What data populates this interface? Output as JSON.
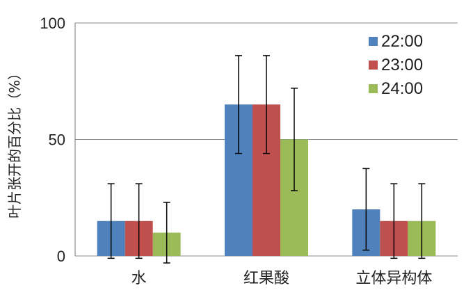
{
  "chart_data": {
    "type": "bar",
    "title": "",
    "xlabel": "",
    "ylabel": "叶片张开的百分比（%）",
    "ylim": [
      0,
      100
    ],
    "yticks": [
      0,
      50,
      100
    ],
    "grid": "horizontal",
    "legend_position": "top-right",
    "categories": [
      "水",
      "红果酸",
      "立体异构体"
    ],
    "series": [
      {
        "name": "22:00",
        "color": "#4f81bd",
        "values": [
          15,
          65,
          20
        ],
        "error": [
          16,
          21,
          17.5
        ]
      },
      {
        "name": "23:00",
        "color": "#c0504d",
        "values": [
          15,
          65,
          15
        ],
        "error": [
          16,
          21,
          16
        ]
      },
      {
        "name": "24:00",
        "color": "#9bbb59",
        "values": [
          10,
          50,
          15
        ],
        "error": [
          13,
          22,
          16
        ]
      }
    ]
  }
}
